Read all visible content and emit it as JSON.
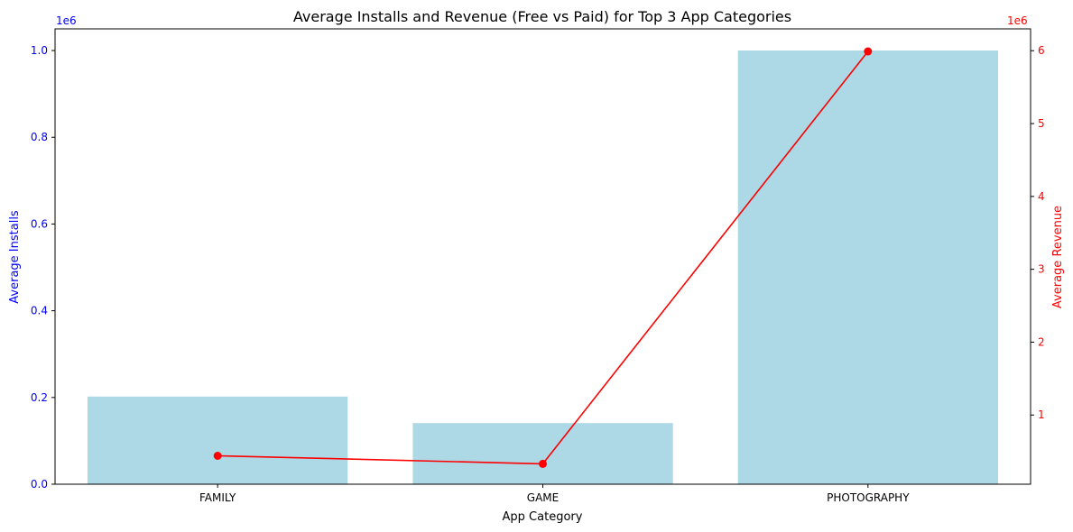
{
  "chart_data": {
    "type": "bar+line",
    "title": "Average Installs and Revenue (Free vs Paid) for Top 3 App Categories",
    "xlabel": "App Category",
    "categories": [
      "FAMILY",
      "GAME",
      "PHOTOGRAPHY"
    ],
    "left_axis": {
      "label": "Average Installs",
      "color": "#0000ff",
      "ylim": [
        0,
        1050000
      ],
      "ticks": [
        0,
        200000,
        400000,
        600000,
        800000,
        1000000
      ],
      "tick_labels": [
        "0.0",
        "0.2",
        "0.4",
        "0.6",
        "0.8",
        "1.0"
      ],
      "offset_text": "1e6"
    },
    "right_axis": {
      "label": "Average Revenue",
      "color": "#ff0000",
      "ylim": [
        50000,
        6300000
      ],
      "ticks": [
        1000000,
        2000000,
        3000000,
        4000000,
        5000000,
        6000000
      ],
      "tick_labels": [
        "1",
        "2",
        "3",
        "4",
        "5",
        "6"
      ],
      "offset_text": "1e6"
    },
    "series": [
      {
        "name": "Average Installs",
        "kind": "bar",
        "axis": "left",
        "color": "#add8e6",
        "values": [
          202000,
          141000,
          1000000
        ]
      },
      {
        "name": "Average Revenue",
        "kind": "line",
        "axis": "right",
        "color": "#ff0000",
        "marker": "circle",
        "values": [
          440000,
          330000,
          5990000
        ]
      }
    ],
    "grid": false,
    "legend": "none"
  }
}
